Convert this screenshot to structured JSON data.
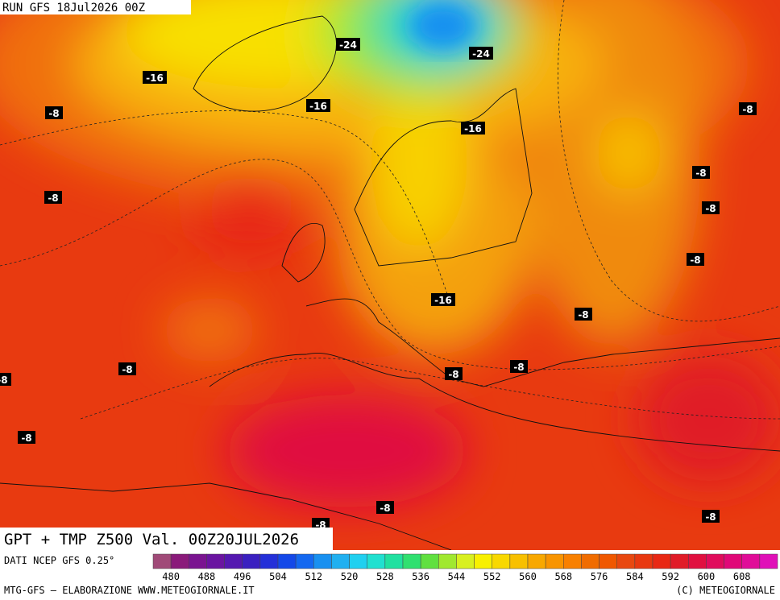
{
  "header": {
    "run": "RUN GFS 18Jul2026 00Z"
  },
  "title": "GPT + TMP Z500 Val. 00Z20JUL2026",
  "source": "DATI NCEP GFS 0.25°",
  "footer": {
    "left": "MTG-GFS — ELABORAZIONE WWW.METEOGIORNALE.IT",
    "right": "(C) METEOGIORNALE"
  },
  "legend": {
    "ticks": [
      "480",
      "488",
      "496",
      "504",
      "512",
      "520",
      "528",
      "536",
      "544",
      "552",
      "560",
      "568",
      "576",
      "584",
      "592",
      "600",
      "608"
    ],
    "colors": [
      "#a04a78",
      "#8a1a7a",
      "#7a1490",
      "#6a14a0",
      "#5418b0",
      "#3a20c0",
      "#2430d8",
      "#1448e8",
      "#1468f0",
      "#1890f0",
      "#20b0f0",
      "#20d0f0",
      "#20e0d0",
      "#20e0a0",
      "#30e070",
      "#60e040",
      "#a0e830",
      "#d8f020",
      "#f8f000",
      "#f8d800",
      "#f8c000",
      "#f8a800",
      "#f89400",
      "#f88000",
      "#f06c00",
      "#f05800",
      "#e84810",
      "#e83810",
      "#e82814",
      "#e01c28",
      "#e01040",
      "#e00c5c",
      "#e00878",
      "#e00c98",
      "#e010b8"
    ]
  },
  "contour_labels": [
    "-24",
    "-24",
    "-16",
    "-16",
    "-16",
    "-8",
    "-8",
    "-8",
    "-8",
    "-8",
    "-8",
    "-16",
    "-8",
    "-8",
    "-8",
    "-8",
    "-8",
    "-8",
    "-8",
    "-8",
    "-8"
  ]
}
